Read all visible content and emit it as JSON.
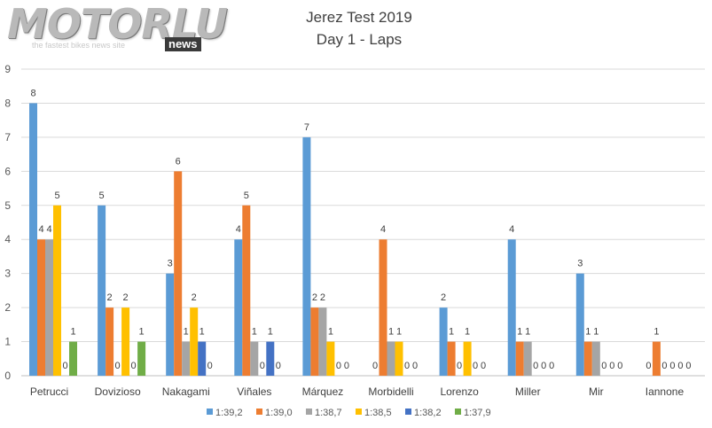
{
  "logo": {
    "text": "MOTORLU",
    "tagline": "the fastest bikes news site",
    "badge": "news"
  },
  "chart_data": {
    "type": "bar",
    "title": "Jerez Test 2019",
    "subtitle": "Day 1 - Laps",
    "xlabel": "",
    "ylabel": "",
    "ylim": [
      0,
      9
    ],
    "yticks": [
      0,
      1,
      2,
      3,
      4,
      5,
      6,
      7,
      8,
      9
    ],
    "grid": true,
    "legend_position": "bottom",
    "categories": [
      "Petrucci",
      "Dovizioso",
      "Nakagami",
      "Viñales",
      "Márquez",
      "Morbidelli",
      "Lorenzo",
      "Miller",
      "Mir",
      "Iannone"
    ],
    "series": [
      {
        "name": "1:39,2",
        "color": "#5B9BD5",
        "values": [
          8,
          5,
          3,
          4,
          7,
          0,
          2,
          4,
          3,
          0
        ]
      },
      {
        "name": "1:39,0",
        "color": "#ED7D31",
        "values": [
          4,
          2,
          6,
          5,
          2,
          4,
          1,
          1,
          1,
          1
        ]
      },
      {
        "name": "1:38,7",
        "color": "#A5A5A5",
        "values": [
          4,
          0,
          1,
          1,
          2,
          1,
          0,
          1,
          1,
          0
        ]
      },
      {
        "name": "1:38,5",
        "color": "#FFC000",
        "values": [
          5,
          2,
          2,
          0,
          1,
          1,
          1,
          0,
          0,
          0
        ]
      },
      {
        "name": "1:38,2",
        "color": "#4472C4",
        "values": [
          0,
          0,
          1,
          1,
          0,
          0,
          0,
          0,
          0,
          0
        ]
      },
      {
        "name": "1:37,9",
        "color": "#70AD47",
        "values": [
          1,
          1,
          0,
          0,
          0,
          0,
          0,
          0,
          0,
          0
        ]
      }
    ]
  }
}
